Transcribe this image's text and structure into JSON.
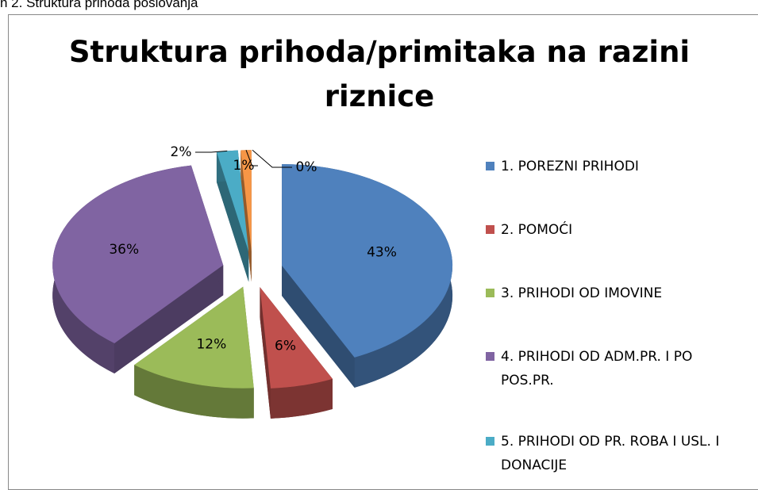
{
  "caption": "n 2. Struktura prihoda poslovanja",
  "chart_data": {
    "type": "pie3d",
    "title": "Struktura prihoda/primitaka na razini riznice",
    "categories": [
      "1. POREZNI PRIHODI",
      "2. POMOĆI",
      "3. PRIHODI OD IMOVINE",
      "4. PRIHODI OD ADM.PR. I PO POS.PR.",
      "5. PRIHODI OD PR. ROBA I USL. I DONACIJE",
      null,
      null
    ],
    "values": [
      43,
      6,
      12,
      36,
      2,
      1,
      0
    ],
    "value_labels": [
      "43%",
      "6%",
      "12%",
      "36%",
      "2%",
      "1%",
      "0%"
    ],
    "colors": [
      "#4f81bd",
      "#c0504d",
      "#9bbb59",
      "#8064a2",
      "#4bacc6",
      "#f79646",
      "#2c4d75"
    ],
    "legend": "right"
  }
}
